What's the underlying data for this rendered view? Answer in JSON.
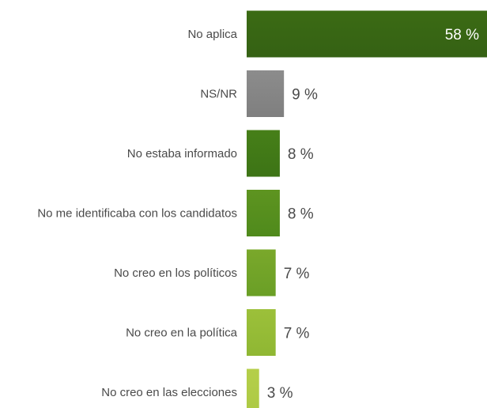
{
  "chart_data": {
    "type": "bar",
    "orientation": "horizontal",
    "title": "",
    "xlabel": "",
    "ylabel": "",
    "xlim": [
      0,
      58
    ],
    "grid": false,
    "legend": "none",
    "categories": [
      "No aplica",
      "NS/NR",
      "No estaba informado",
      "No me identificaba con los candidatos",
      "No creo en los políticos",
      "No creo en la política",
      "No creo en las elecciones"
    ],
    "values": [
      58,
      9,
      8,
      8,
      7,
      7,
      3
    ],
    "value_labels": [
      "58 %",
      "9 %",
      "8 %",
      "8 %",
      "7 %",
      "7 %",
      "3 %"
    ],
    "colors": {
      "No aplica": "#3b6b14",
      "NS/NR": "#8c8c8c",
      "No estaba informado": "#467f18",
      "No me identificaba con los candidatos": "#5e9420",
      "No creo en los políticos": "#7aa82b",
      "No creo en la política": "#9cc03a",
      "No creo en las elecciones": "#b5cf4a"
    },
    "gradient_end": {
      "No aplica": "#356114",
      "NS/NR": "#7f7f7f",
      "No estaba informado": "#3d7416",
      "No me identificaba con los candidatos": "#4f8a1c",
      "No creo en los políticos": "#6a9f26",
      "No creo en la política": "#8fb733",
      "No creo en las elecciones": "#acc944"
    }
  }
}
